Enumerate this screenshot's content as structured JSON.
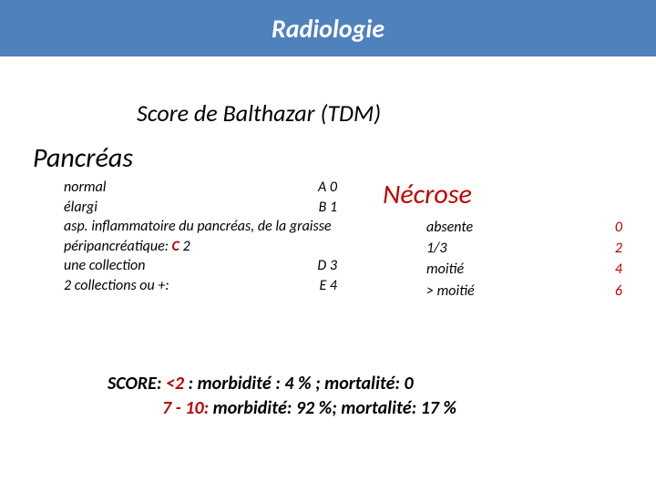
{
  "banner": {
    "title": "Radiologie"
  },
  "subtitle": "Score de Balthazar (TDM)",
  "pancreas": {
    "heading": "Pancréas",
    "rows": [
      {
        "label": "normal",
        "code": "A 0"
      },
      {
        "label": "élargi",
        "code": "B  1"
      }
    ],
    "wrap_prefix": "asp. inflammatoire du pancréas, de la graisse péripancréatique: ",
    "wrap_letter": "C",
    "wrap_suffix": "  2",
    "rows2": [
      {
        "label": "une collection",
        "code": "D 3"
      },
      {
        "label": "2 collections ou +:",
        "code": "E 4"
      }
    ]
  },
  "necrose": {
    "heading": "Nécrose",
    "rows": [
      {
        "label": "absente",
        "value": "0"
      },
      {
        "label": "1/3",
        "value": "2"
      },
      {
        "label": "moitié",
        "value": "4"
      },
      {
        "label": "> moitié",
        "value": "6"
      }
    ]
  },
  "score": {
    "prefix": "SCORE: ",
    "line1_red": "<2",
    "line1_rest": " :   morbidité : 4 % ;  mortalité: 0",
    "line2_red": " 7 - 10:",
    "line2_rest": " morbidité: 92 %; mortalité: 17 %"
  },
  "colors": {
    "banner_bg": "#4f81bd",
    "accent_red": "#c00000",
    "text": "#000000",
    "banner_text": "#ffffff"
  }
}
